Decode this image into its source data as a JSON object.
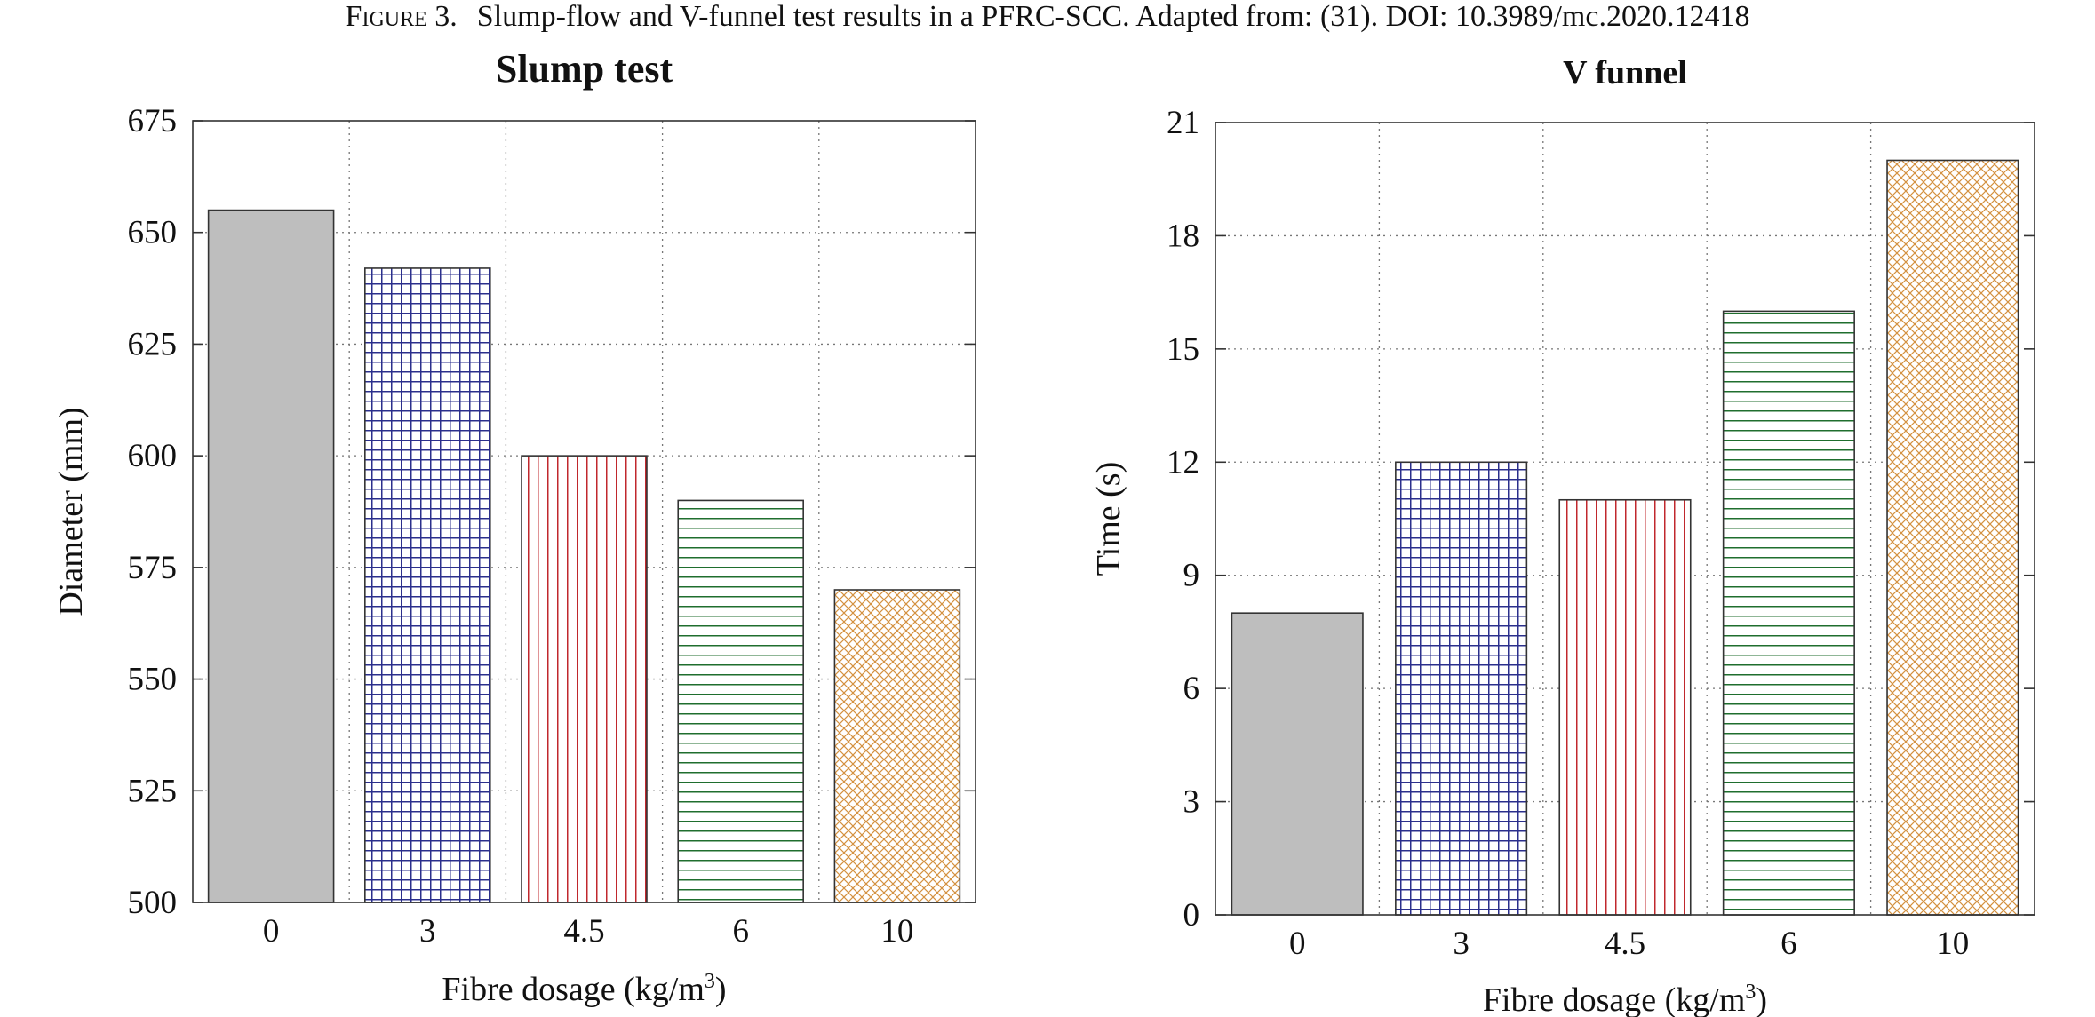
{
  "caption": {
    "label": "Figure 3.",
    "text": "Slump-flow and V-funnel test results in a PFRC-SCC. Adapted from: (31). DOI: 10.3989/mc.2020.12418"
  },
  "chart_data": [
    {
      "type": "bar",
      "title": "Slump test",
      "xlabel": "Fibre dosage (kg/m3)",
      "ylabel": "Diameter (mm)",
      "categories": [
        "0",
        "3",
        "4.5",
        "6",
        "10"
      ],
      "values": [
        655,
        642,
        600,
        590,
        570
      ],
      "ylim": [
        500,
        675
      ],
      "yticks": [
        500,
        525,
        550,
        575,
        600,
        625,
        650,
        675
      ],
      "grid": true,
      "bar_styles": [
        {
          "fill": "solid",
          "color": "#bebebe"
        },
        {
          "fill": "grid-hatch",
          "color": "#2b2f8c"
        },
        {
          "fill": "vertical-hatch",
          "color": "#c0282d"
        },
        {
          "fill": "horizontal-hatch",
          "color": "#1f6e2e"
        },
        {
          "fill": "cross-hatch",
          "color": "#d4913f"
        }
      ]
    },
    {
      "type": "bar",
      "title": "V funnel",
      "xlabel": "Fibre dosage (kg/m3)",
      "ylabel": "Time (s)",
      "categories": [
        "0",
        "3",
        "4.5",
        "6",
        "10"
      ],
      "values": [
        8,
        12,
        11,
        16,
        20
      ],
      "ylim": [
        0,
        21
      ],
      "yticks": [
        0,
        3,
        6,
        9,
        12,
        15,
        18,
        21
      ],
      "grid": true,
      "bar_styles": [
        {
          "fill": "solid",
          "color": "#bebebe"
        },
        {
          "fill": "grid-hatch",
          "color": "#2b2f8c"
        },
        {
          "fill": "vertical-hatch",
          "color": "#c0282d"
        },
        {
          "fill": "horizontal-hatch",
          "color": "#1f6e2e"
        },
        {
          "fill": "cross-hatch",
          "color": "#d4913f"
        }
      ]
    }
  ]
}
